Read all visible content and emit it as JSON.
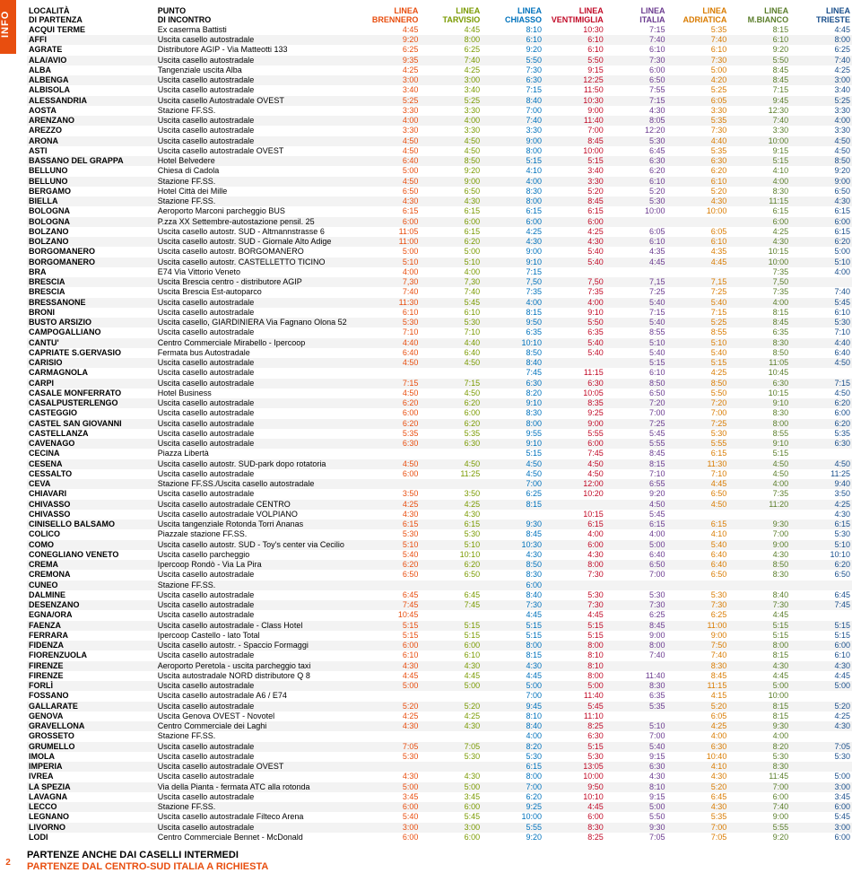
{
  "info_label": "INFO",
  "page_number": "2",
  "footer_line1": "PARTENZE ANCHE DAI CASELLI INTERMEDI",
  "footer_line2": "PARTENZE DAL CENTRO-SUD ITALIA A RICHIESTA",
  "colors": {
    "accent": "#e84e0f",
    "row_alt": "#f3f3f3",
    "col_loc": "#000000",
    "col_pt": "#000000",
    "lines": [
      "#e84e0f",
      "#7a9a01",
      "#0072bc",
      "#c10a27",
      "#6b3b8f",
      "#d97b00",
      "#5a7d2a",
      "#1a4f8b"
    ]
  },
  "headers": {
    "loc": [
      "LOCALITÀ",
      "DI PARTENZA"
    ],
    "pt": [
      "PUNTO",
      "DI INCONTRO"
    ],
    "lines": [
      [
        "LINEA",
        "BRENNERO"
      ],
      [
        "LINEA",
        "TARVISIO"
      ],
      [
        "LINEA",
        "CHIASSO"
      ],
      [
        "LINEA",
        "VENTIMIGLIA"
      ],
      [
        "LINEA",
        "ITALIA"
      ],
      [
        "LINEA",
        "ADRIATICA"
      ],
      [
        "LINEA",
        "M.BIANCO"
      ],
      [
        "LINEA",
        "TRIESTE"
      ]
    ]
  },
  "col_widths": {
    "loc": "140px",
    "pt": "220px",
    "line": "67px"
  },
  "rows": [
    {
      "loc": "ACQUI TERME",
      "pt": "Ex caserma Battisti",
      "t": [
        "4:45",
        "4:45",
        "8:10",
        "10:30",
        "7:15",
        "5:35",
        "8:15",
        "4:45"
      ]
    },
    {
      "loc": "AFFI",
      "pt": "Uscita casello autostradale",
      "t": [
        "9:20",
        "8:00",
        "6:10",
        "6:10",
        "7:40",
        "7:40",
        "6:10",
        "8:00"
      ]
    },
    {
      "loc": "AGRATE",
      "pt": "Distributore AGIP - Via Matteotti 133",
      "t": [
        "6:25",
        "6:25",
        "9:20",
        "6:10",
        "6:10",
        "6:10",
        "9:20",
        "6:25"
      ]
    },
    {
      "loc": "ALA/AVIO",
      "pt": "Uscita casello autostradale",
      "t": [
        "9:35",
        "7:40",
        "5:50",
        "5:50",
        "7:30",
        "7:30",
        "5:50",
        "7:40"
      ]
    },
    {
      "loc": "ALBA",
      "pt": "Tangenziale uscita Alba",
      "t": [
        "4:25",
        "4:25",
        "7:30",
        "9:15",
        "6:00",
        "5:00",
        "8:45",
        "4:25"
      ]
    },
    {
      "loc": "ALBENGA",
      "pt": "Uscita casello autostradale",
      "t": [
        "3:00",
        "3:00",
        "6:30",
        "12:25",
        "6:50",
        "4:20",
        "8:45",
        "3:00"
      ]
    },
    {
      "loc": "ALBISOLA",
      "pt": "Uscita casello autostradale",
      "t": [
        "3:40",
        "3:40",
        "7:15",
        "11:50",
        "7:55",
        "5:25",
        "7:15",
        "3:40"
      ]
    },
    {
      "loc": "ALESSANDRIA",
      "pt": "Uscita casello Autostradale OVEST",
      "t": [
        "5:25",
        "5:25",
        "8:40",
        "10:30",
        "7:15",
        "6:05",
        "9:45",
        "5:25"
      ]
    },
    {
      "loc": "AOSTA",
      "pt": "Stazione FF.SS.",
      "t": [
        "3:30",
        "3:30",
        "7:00",
        "9:00",
        "4:30",
        "3:30",
        "12:30",
        "3:30"
      ]
    },
    {
      "loc": "ARENZANO",
      "pt": "Uscita casello autostradale",
      "t": [
        "4:00",
        "4:00",
        "7:40",
        "11:40",
        "8:05",
        "5:35",
        "7:40",
        "4:00"
      ]
    },
    {
      "loc": "AREZZO",
      "pt": "Uscita casello autostradale",
      "t": [
        "3:30",
        "3:30",
        "3:30",
        "7:00",
        "12:20",
        "7:30",
        "3:30",
        "3:30"
      ]
    },
    {
      "loc": "ARONA",
      "pt": "Uscita casello autostradale",
      "t": [
        "4:50",
        "4:50",
        "9:00",
        "8:45",
        "5:30",
        "4:40",
        "10:00",
        "4:50"
      ]
    },
    {
      "loc": "ASTI",
      "pt": "Uscita casello autostradale OVEST",
      "t": [
        "4:50",
        "4:50",
        "8:00",
        "10:00",
        "6:45",
        "5:35",
        "9:15",
        "4:50"
      ]
    },
    {
      "loc": "BASSANO DEL GRAPPA",
      "pt": "Hotel Belvedere",
      "t": [
        "6:40",
        "8:50",
        "5:15",
        "5:15",
        "6:30",
        "6:30",
        "5:15",
        "8:50"
      ]
    },
    {
      "loc": "BELLUNO",
      "pt": "Chiesa di Cadola",
      "t": [
        "5:00",
        "9:20",
        "4:10",
        "3:40",
        "6:20",
        "6:20",
        "4:10",
        "9:20"
      ]
    },
    {
      "loc": "BELLUNO",
      "pt": "Stazione FF.SS.",
      "t": [
        "4:50",
        "9:00",
        "4:00",
        "3:30",
        "6:10",
        "6:10",
        "4:00",
        "9:00"
      ]
    },
    {
      "loc": "BERGAMO",
      "pt": "Hotel Città dei Mille",
      "t": [
        "6:50",
        "6:50",
        "8:30",
        "5:20",
        "5:20",
        "5:20",
        "8:30",
        "6:50"
      ]
    },
    {
      "loc": "BIELLA",
      "pt": "Stazione FF.SS.",
      "t": [
        "4:30",
        "4:30",
        "8:00",
        "8:45",
        "5:30",
        "4:30",
        "11:15",
        "4:30"
      ]
    },
    {
      "loc": "BOLOGNA",
      "pt": "Aeroporto Marconi parcheggio BUS",
      "t": [
        "6:15",
        "6:15",
        "6:15",
        "6:15",
        "10:00",
        "10:00",
        "6:15",
        "6:15"
      ]
    },
    {
      "loc": "BOLOGNA",
      "pt": "P.zza XX Settembre-autostazione pensil. 25",
      "t": [
        "6:00",
        "6:00",
        "6:00",
        "6:00",
        "",
        "",
        "6:00",
        "6:00"
      ]
    },
    {
      "loc": "BOLZANO",
      "pt": "Uscita casello autostr. SUD - Altmannstrasse 6",
      "t": [
        "11:05",
        "6:15",
        "4:25",
        "4:25",
        "6:05",
        "6:05",
        "4:25",
        "6:15"
      ]
    },
    {
      "loc": "BOLZANO",
      "pt": "Uscita casello autostr. SUD - Giornale Alto Adige",
      "t": [
        "11:00",
        "6:20",
        "4:30",
        "4:30",
        "6:10",
        "6:10",
        "4:30",
        "6:20"
      ]
    },
    {
      "loc": "BORGOMANERO",
      "pt": "Uscita casello autostr. BORGOMANERO",
      "t": [
        "5:00",
        "5:00",
        "9:00",
        "5:40",
        "4:35",
        "4:35",
        "10:15",
        "5:00"
      ]
    },
    {
      "loc": "BORGOMANERO",
      "pt": "Uscita casello autostr. CASTELLETTO TICINO",
      "t": [
        "5:10",
        "5:10",
        "9:10",
        "5:40",
        "4:45",
        "4:45",
        "10:00",
        "5:10"
      ]
    },
    {
      "loc": "BRA",
      "pt": "E74 Via Vittorio Veneto",
      "t": [
        "4:00",
        "4:00",
        "7:15",
        "",
        "",
        "",
        "7:35",
        "4:00"
      ]
    },
    {
      "loc": "BRESCIA",
      "pt": "Uscita Brescia centro - distributore AGIP",
      "t": [
        "7,30",
        "7,30",
        "7,50",
        "7,50",
        "7,15",
        "7,15",
        "7,50",
        ""
      ]
    },
    {
      "loc": "BRESCIA",
      "pt": "Uscita Brescia Est-autoparco",
      "t": [
        "7:40",
        "7:40",
        "7:35",
        "7:35",
        "7:25",
        "7:25",
        "7:35",
        "7:40"
      ]
    },
    {
      "loc": "BRESSANONE",
      "pt": "Uscita casello autostradale",
      "t": [
        "11:30",
        "5:45",
        "4:00",
        "4:00",
        "5:40",
        "5:40",
        "4:00",
        "5:45"
      ]
    },
    {
      "loc": "BRONI",
      "pt": "Uscita casello autostradale",
      "t": [
        "6:10",
        "6:10",
        "8:15",
        "9:10",
        "7:15",
        "7:15",
        "8:15",
        "6:10"
      ]
    },
    {
      "loc": "BUSTO ARSIZIO",
      "pt": "Uscita casello, GIARDINIERA Via Fagnano Olona 52",
      "t": [
        "5:30",
        "5:30",
        "9:50",
        "5:50",
        "5:40",
        "5:25",
        "8:45",
        "5:30"
      ]
    },
    {
      "loc": "CAMPOGALLIANO",
      "pt": "Uscita casello autostradale",
      "t": [
        "7:10",
        "7:10",
        "6:35",
        "6:35",
        "8:55",
        "8:55",
        "6:35",
        "7:10"
      ]
    },
    {
      "loc": "CANTU'",
      "pt": "Centro Commerciale Mirabello - Ipercoop",
      "t": [
        "4:40",
        "4:40",
        "10:10",
        "5:40",
        "5:10",
        "5:10",
        "8:30",
        "4:40"
      ]
    },
    {
      "loc": "CAPRIATE S.GERVASIO",
      "pt": "Fermata bus Autostradale",
      "t": [
        "6:40",
        "6:40",
        "8:50",
        "5:40",
        "5:40",
        "5:40",
        "8:50",
        "6:40"
      ]
    },
    {
      "loc": "CARISIO",
      "pt": "Uscita casello autostradale",
      "t": [
        "4:50",
        "4:50",
        "8:40",
        "",
        "5:15",
        "5:15",
        "11:05",
        "4:50"
      ]
    },
    {
      "loc": "CARMAGNOLA",
      "pt": "Uscita casello autostradale",
      "t": [
        "",
        "",
        "7:45",
        "11:15",
        "6:10",
        "4:25",
        "10:45",
        ""
      ]
    },
    {
      "loc": "CARPI",
      "pt": "Uscita casello autostradale",
      "t": [
        "7:15",
        "7:15",
        "6:30",
        "6:30",
        "8:50",
        "8:50",
        "6:30",
        "7:15"
      ]
    },
    {
      "loc": "CASALE MONFERRATO",
      "pt": "Hotel Business",
      "t": [
        "4:50",
        "4:50",
        "8:20",
        "10:05",
        "6:50",
        "5:50",
        "10:15",
        "4:50"
      ]
    },
    {
      "loc": "CASALPUSTERLENGO",
      "pt": "Uscita casello autostradale",
      "t": [
        "6:20",
        "6:20",
        "9:10",
        "8:35",
        "7:20",
        "7:20",
        "9:10",
        "6:20"
      ]
    },
    {
      "loc": "CASTEGGIO",
      "pt": "Uscita casello autostradale",
      "t": [
        "6:00",
        "6:00",
        "8:30",
        "9:25",
        "7:00",
        "7:00",
        "8:30",
        "6:00"
      ]
    },
    {
      "loc": "CASTEL SAN GIOVANNI",
      "pt": "Uscita casello autostradale",
      "t": [
        "6:20",
        "6:20",
        "8:00",
        "9:00",
        "7:25",
        "7:25",
        "8:00",
        "6:20"
      ]
    },
    {
      "loc": "CASTELLANZA",
      "pt": "Uscita casello autostradale",
      "t": [
        "5:35",
        "5:35",
        "9:55",
        "5:55",
        "5:45",
        "5:30",
        "8:55",
        "5:35"
      ]
    },
    {
      "loc": "CAVENAGO",
      "pt": "Uscita casello autostradale",
      "t": [
        "6:30",
        "6:30",
        "9:10",
        "6:00",
        "5:55",
        "5:55",
        "9:10",
        "6:30"
      ]
    },
    {
      "loc": "CECINA",
      "pt": "Piazza Libertà",
      "t": [
        "",
        "",
        "5:15",
        "7:45",
        "8:45",
        "6:15",
        "5:15",
        ""
      ]
    },
    {
      "loc": "CESENA",
      "pt": "Uscita casello autostr. SUD-park dopo rotatoria",
      "t": [
        "4:50",
        "4:50",
        "4:50",
        "4:50",
        "8:15",
        "11:30",
        "4:50",
        "4:50"
      ]
    },
    {
      "loc": "CESSALTO",
      "pt": "Uscita casello autostradale",
      "t": [
        "6:00",
        "11:25",
        "4:50",
        "4:50",
        "7:10",
        "7:10",
        "4:50",
        "11:25"
      ]
    },
    {
      "loc": "CEVA",
      "pt": "Stazione FF.SS./Uscita casello autostradale",
      "t": [
        "",
        "",
        "7:00",
        "12:00",
        "6:55",
        "4:45",
        "4:00",
        "9:40"
      ]
    },
    {
      "loc": "CHIAVARI",
      "pt": "Uscita casello autostradale",
      "t": [
        "3:50",
        "3:50",
        "6:25",
        "10:20",
        "9:20",
        "6:50",
        "7:35",
        "3:50"
      ]
    },
    {
      "loc": "CHIVASSO",
      "pt": "Uscita casello autostradale CENTRO",
      "t": [
        "4:25",
        "4:25",
        "8:15",
        "",
        "4:50",
        "4:50",
        "11:20",
        "4:25"
      ]
    },
    {
      "loc": "CHIVASSO",
      "pt": "Uscita casello autostradale VOLPIANO",
      "t": [
        "4:30",
        "4:30",
        "",
        "10:15",
        "5:45",
        "",
        "",
        "4:30"
      ]
    },
    {
      "loc": "CINISELLO BALSAMO",
      "pt": "Uscita tangenziale Rotonda Torri Ananas",
      "t": [
        "6:15",
        "6:15",
        "9:30",
        "6:15",
        "6:15",
        "6:15",
        "9:30",
        "6:15"
      ]
    },
    {
      "loc": "COLICO",
      "pt": "Piazzale stazione FF.SS.",
      "t": [
        "5:30",
        "5:30",
        "8:45",
        "4:00",
        "4:00",
        "4:10",
        "7:00",
        "5:30"
      ]
    },
    {
      "loc": "COMO",
      "pt": "Uscita casello autostr. SUD - Toy's center via Cecilio",
      "t": [
        "5:10",
        "5:10",
        "10:30",
        "6:00",
        "5:00",
        "5:40",
        "9:00",
        "5:10"
      ]
    },
    {
      "loc": "CONEGLIANO VENETO",
      "pt": "Uscita casello parcheggio",
      "t": [
        "5:40",
        "10:10",
        "4:30",
        "4:30",
        "6:40",
        "6:40",
        "4:30",
        "10:10"
      ]
    },
    {
      "loc": "CREMA",
      "pt": "Ipercoop Rondò - Via La Pira",
      "t": [
        "6:20",
        "6:20",
        "8:50",
        "8:00",
        "6:50",
        "6:40",
        "8:50",
        "6:20"
      ]
    },
    {
      "loc": "CREMONA",
      "pt": "Uscita casello autostradale",
      "t": [
        "6:50",
        "6:50",
        "8:30",
        "7:30",
        "7:00",
        "6:50",
        "8:30",
        "6:50"
      ]
    },
    {
      "loc": "CUNEO",
      "pt": "Stazione FF.SS.",
      "t": [
        "",
        "",
        "6:00",
        "",
        "",
        "",
        "",
        ""
      ]
    },
    {
      "loc": "DALMINE",
      "pt": "Uscita casello autostradale",
      "t": [
        "6:45",
        "6:45",
        "8:40",
        "5:30",
        "5:30",
        "5:30",
        "8:40",
        "6:45"
      ]
    },
    {
      "loc": "DESENZANO",
      "pt": "Uscita casello autostradale",
      "t": [
        "7:45",
        "7:45",
        "7:30",
        "7:30",
        "7:30",
        "7:30",
        "7:30",
        "7:45"
      ]
    },
    {
      "loc": "EGNA/ORA",
      "pt": "Uscita casello autostradale",
      "t": [
        "10:45",
        "",
        "4:45",
        "4:45",
        "6:25",
        "6:25",
        "4:45",
        ""
      ]
    },
    {
      "loc": "FAENZA",
      "pt": "Uscita casello autostradale - Class Hotel",
      "t": [
        "5:15",
        "5:15",
        "5:15",
        "5:15",
        "8:45",
        "11:00",
        "5:15",
        "5:15"
      ]
    },
    {
      "loc": "FERRARA",
      "pt": "Ipercoop Castello - lato Total",
      "t": [
        "5:15",
        "5:15",
        "5:15",
        "5:15",
        "9:00",
        "9:00",
        "5:15",
        "5:15"
      ]
    },
    {
      "loc": "FIDENZA",
      "pt": "Uscita casello autostr. - Spaccio Formaggi",
      "t": [
        "6:00",
        "6:00",
        "8:00",
        "8:00",
        "8:00",
        "7:50",
        "8:00",
        "6:00"
      ]
    },
    {
      "loc": "FIORENZUOLA",
      "pt": "Uscita casello autostradale",
      "t": [
        "6:10",
        "6:10",
        "8:15",
        "8:10",
        "7:40",
        "7:40",
        "8:15",
        "6:10"
      ]
    },
    {
      "loc": "FIRENZE",
      "pt": "Aeroporto Peretola - uscita parcheggio taxi",
      "t": [
        "4:30",
        "4:30",
        "4:30",
        "8:10",
        "",
        "8:30",
        "4:30",
        "4:30"
      ]
    },
    {
      "loc": "FIRENZE",
      "pt": "Uscita autostradale NORD distributore Q 8",
      "t": [
        "4:45",
        "4:45",
        "4:45",
        "8:00",
        "11:40",
        "8:45",
        "4:45",
        "4:45"
      ]
    },
    {
      "loc": "FORLÌ",
      "pt": "Uscita casello autostradale",
      "t": [
        "5:00",
        "5:00",
        "5:00",
        "5:00",
        "8:30",
        "11:15",
        "5:00",
        "5:00"
      ]
    },
    {
      "loc": "FOSSANO",
      "pt": "Uscita casello autostradale A6 / E74",
      "t": [
        "",
        "",
        "7:00",
        "11:40",
        "6:35",
        "4:15",
        "10:00",
        ""
      ]
    },
    {
      "loc": "GALLARATE",
      "pt": "Uscita casello autostradale",
      "t": [
        "5:20",
        "5:20",
        "9:45",
        "5:45",
        "5:35",
        "5:20",
        "8:15",
        "5:20"
      ]
    },
    {
      "loc": "GENOVA",
      "pt": "Uscita Genova OVEST - Novotel",
      "t": [
        "4:25",
        "4:25",
        "8:10",
        "11:10",
        "",
        "6:05",
        "8:15",
        "4:25"
      ]
    },
    {
      "loc": "GRAVELLONA",
      "pt": "Centro Commerciale dei Laghi",
      "t": [
        "4:30",
        "4:30",
        "8:40",
        "8:25",
        "5:10",
        "4:25",
        "9:30",
        "4:30"
      ]
    },
    {
      "loc": "GROSSETO",
      "pt": "Stazione FF.SS.",
      "t": [
        "",
        "",
        "4:00",
        "6:30",
        "7:00",
        "4:00",
        "4:00",
        ""
      ]
    },
    {
      "loc": "GRUMELLO",
      "pt": "Uscita casello autostradale",
      "t": [
        "7:05",
        "7:05",
        "8:20",
        "5:15",
        "5:40",
        "6:30",
        "8:20",
        "7:05"
      ]
    },
    {
      "loc": "IMOLA",
      "pt": "Uscita casello autostradale",
      "t": [
        "5:30",
        "5:30",
        "5:30",
        "5:30",
        "9:15",
        "10:40",
        "5:30",
        "5:30"
      ]
    },
    {
      "loc": "IMPERIA",
      "pt": "Uscita casello autostradale OVEST",
      "t": [
        "",
        "",
        "6:15",
        "13:05",
        "6:30",
        "4:10",
        "8:30",
        ""
      ]
    },
    {
      "loc": "IVREA",
      "pt": "Uscita casello autostradale",
      "t": [
        "4:30",
        "4:30",
        "8:00",
        "10:00",
        "4:30",
        "4:30",
        "11:45",
        "5:00"
      ]
    },
    {
      "loc": "LA SPEZIA",
      "pt": "Via della Pianta - fermata ATC alla rotonda",
      "t": [
        "5:00",
        "5:00",
        "7:00",
        "9:50",
        "8:10",
        "5:20",
        "7:00",
        "3:00"
      ]
    },
    {
      "loc": "LAVAGNA",
      "pt": "Uscita casello autostradale",
      "t": [
        "3:45",
        "3:45",
        "6:20",
        "10:10",
        "9:15",
        "6:45",
        "6:00",
        "3:45"
      ]
    },
    {
      "loc": "LECCO",
      "pt": "Stazione FF.SS.",
      "t": [
        "6:00",
        "6:00",
        "9:25",
        "4:45",
        "5:00",
        "4:30",
        "7:40",
        "6:00"
      ]
    },
    {
      "loc": "LEGNANO",
      "pt": "Uscita casello autostradale Filteco Arena",
      "t": [
        "5:40",
        "5:45",
        "10:00",
        "6:00",
        "5:50",
        "5:35",
        "9:00",
        "5:45"
      ]
    },
    {
      "loc": "LIVORNO",
      "pt": "Uscita casello autostradale",
      "t": [
        "3:00",
        "3:00",
        "5:55",
        "8:30",
        "9:30",
        "7:00",
        "5:55",
        "3:00"
      ]
    },
    {
      "loc": "LODI",
      "pt": "Centro Commerciale Bennet - McDonald",
      "t": [
        "6:00",
        "6:00",
        "9:20",
        "8:25",
        "7:05",
        "7:05",
        "9:20",
        "6:00"
      ]
    }
  ]
}
